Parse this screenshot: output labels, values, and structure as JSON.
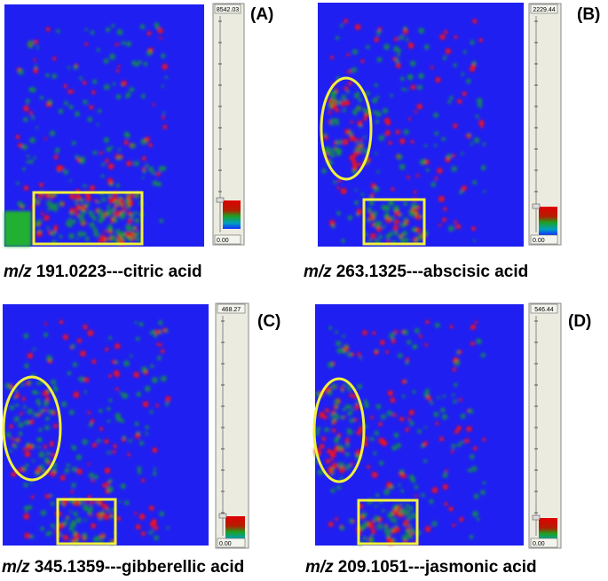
{
  "panels": [
    {
      "label": "(A)",
      "mz": "m/z",
      "caption": "191.0223---citric acid",
      "scale_max": "8542.03",
      "scale_min": "0.00"
    },
    {
      "label": "(B)",
      "mz": "m/z",
      "caption": "263.1325---abscisic acid",
      "scale_max": "2229.44",
      "scale_min": "0.00"
    },
    {
      "label": "(C)",
      "mz": "m/z",
      "caption": "345.1359---gibberellic acid",
      "scale_max": "468.27",
      "scale_min": "0.00"
    },
    {
      "label": "(D)",
      "mz": "m/z",
      "caption": "209.1051---jasmonic acid",
      "scale_max": "546.44",
      "scale_min": "0.00"
    }
  ]
}
